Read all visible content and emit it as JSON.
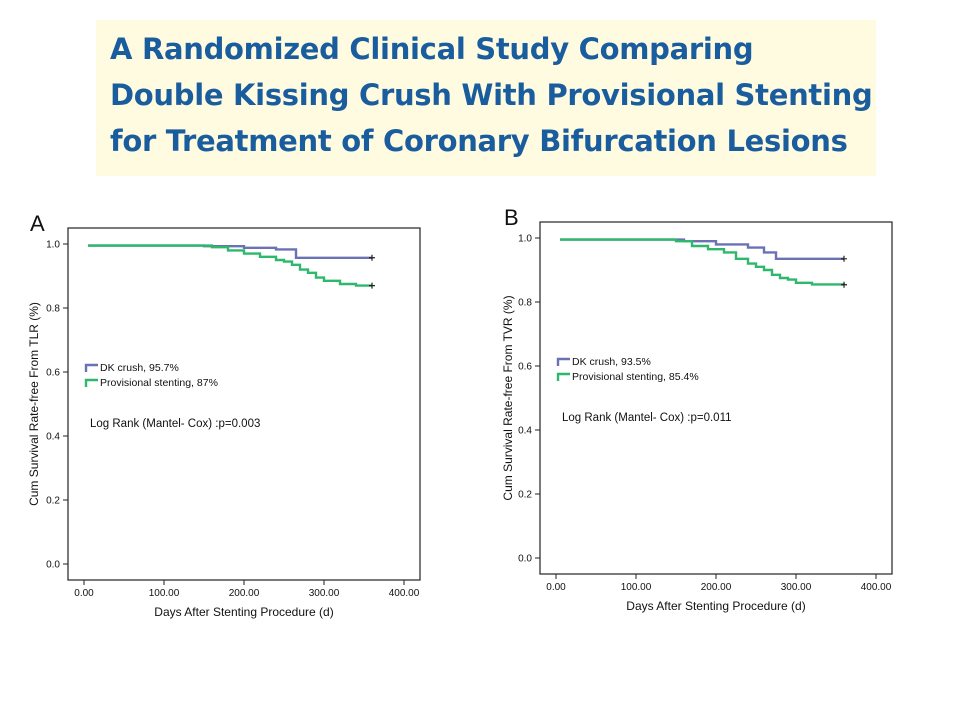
{
  "title": {
    "lines": [
      "A Randomized Clinical Study Comparing",
      "Double Kissing Crush With Provisional Stenting",
      "for Treatment of Coronary Bifurcation Lesions"
    ]
  },
  "colors": {
    "dk_crush": "#6a72b4",
    "provisional": "#2eb86b",
    "title_text": "#1a5d9e",
    "title_bg": "#fffbe0"
  },
  "chart_data": [
    {
      "type": "line",
      "panel_label": "A",
      "xlabel": "Days After Stenting Procedure (d)",
      "ylabel": "Cum Survival Rate-free From TLR (%)",
      "xlim": [
        0,
        400
      ],
      "ylim": [
        0,
        1.0
      ],
      "x_ticks": [
        "0.00",
        "100.00",
        "200.00",
        "300.00",
        "400.00"
      ],
      "y_ticks": [
        "0.0",
        "0.2",
        "0.4",
        "0.6",
        "0.8",
        "1.0"
      ],
      "legend": {
        "position": "left-middle"
      },
      "annotation": "Log Rank (Mantel- Cox) :p=0.003",
      "series": [
        {
          "name": "DK crush, 95.7%",
          "color": "#6a72b4",
          "x": [
            5,
            150,
            200,
            240,
            265,
            360
          ],
          "y": [
            0.995,
            0.993,
            0.988,
            0.983,
            0.957,
            0.957
          ]
        },
        {
          "name": "Provisional stenting, 87%",
          "color": "#2eb86b",
          "x": [
            5,
            160,
            180,
            200,
            220,
            240,
            250,
            260,
            270,
            280,
            290,
            300,
            320,
            340,
            360
          ],
          "y": [
            0.995,
            0.99,
            0.98,
            0.97,
            0.96,
            0.95,
            0.945,
            0.935,
            0.92,
            0.91,
            0.895,
            0.885,
            0.875,
            0.87,
            0.87
          ]
        }
      ]
    },
    {
      "type": "line",
      "panel_label": "B",
      "xlabel": "Days After Stenting Procedure (d)",
      "ylabel": "Cum Survival Rate-free From TVR (%)",
      "xlim": [
        0,
        400
      ],
      "ylim": [
        0,
        1.0
      ],
      "x_ticks": [
        "0.00",
        "100.00",
        "200.00",
        "300.00",
        "400.00"
      ],
      "y_ticks": [
        "0.0",
        "0.2",
        "0.4",
        "0.6",
        "0.8",
        "1.0"
      ],
      "legend": {
        "position": "left-middle"
      },
      "annotation": "Log Rank (Mantel- Cox) :p=0.011",
      "series": [
        {
          "name": "DK crush, 93.5%",
          "color": "#6a72b4",
          "x": [
            5,
            160,
            200,
            240,
            260,
            275,
            360
          ],
          "y": [
            0.995,
            0.99,
            0.98,
            0.97,
            0.955,
            0.935,
            0.935
          ]
        },
        {
          "name": "Provisional stenting, 85.4%",
          "color": "#2eb86b",
          "x": [
            5,
            150,
            170,
            190,
            210,
            225,
            240,
            250,
            260,
            270,
            280,
            290,
            300,
            320,
            360
          ],
          "y": [
            0.995,
            0.99,
            0.975,
            0.965,
            0.955,
            0.935,
            0.92,
            0.91,
            0.9,
            0.885,
            0.875,
            0.87,
            0.86,
            0.855,
            0.854
          ]
        }
      ]
    }
  ]
}
